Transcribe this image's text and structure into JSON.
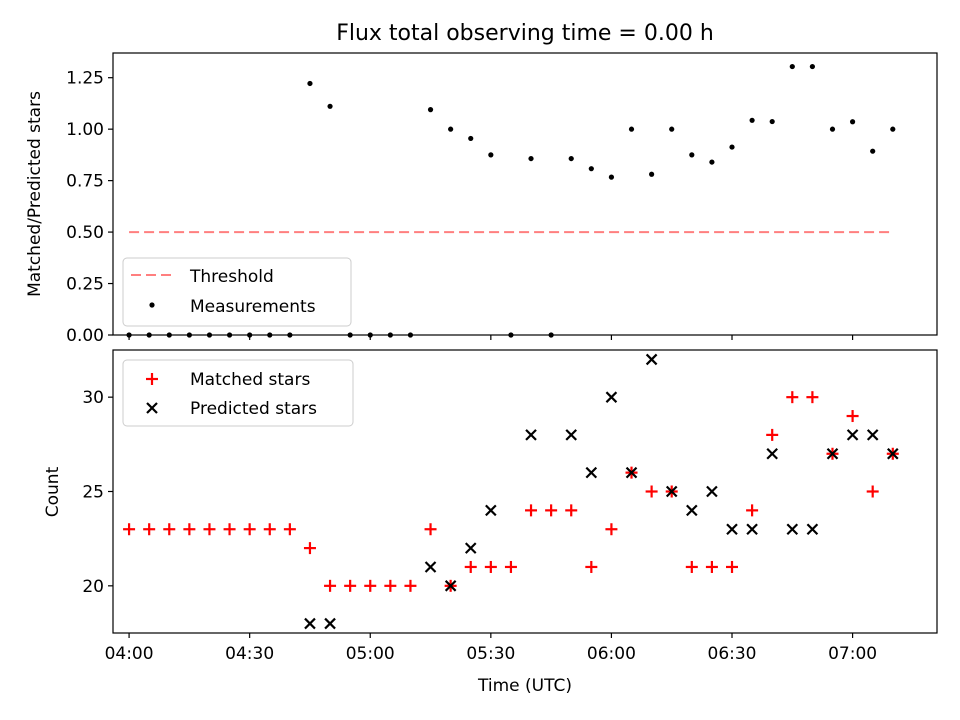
{
  "chart_data": [
    {
      "type": "scatter",
      "title": "Flux total observing time = 0.00 h",
      "ylabel": "Matched/Predicted stars",
      "xlabel": "",
      "ylim": [
        0,
        1.37
      ],
      "yticks": [
        "0.00",
        "0.25",
        "0.50",
        "0.75",
        "1.00",
        "1.25"
      ],
      "ytick_values": [
        0,
        0.25,
        0.5,
        0.75,
        1.0,
        1.25
      ],
      "xlim_minutes": [
        -4,
        201
      ],
      "grid": false,
      "legend_position": "lower-left",
      "threshold": {
        "name": "Threshold",
        "value": 0.5,
        "color": "#ff7f7f",
        "x_from": "04:00",
        "x_to": "07:10"
      },
      "series": [
        {
          "name": "Measurements",
          "color": "#000000",
          "points": [
            [
              "04:00",
              0.0
            ],
            [
              "04:05",
              0.0
            ],
            [
              "04:10",
              0.0
            ],
            [
              "04:15",
              0.0
            ],
            [
              "04:20",
              0.0
            ],
            [
              "04:25",
              0.0
            ],
            [
              "04:30",
              0.0
            ],
            [
              "04:35",
              0.0
            ],
            [
              "04:40",
              0.0
            ],
            [
              "04:45",
              1.222
            ],
            [
              "04:50",
              1.111
            ],
            [
              "04:55",
              0.0
            ],
            [
              "05:00",
              0.0
            ],
            [
              "05:05",
              0.0
            ],
            [
              "05:10",
              0.0
            ],
            [
              "05:15",
              1.095
            ],
            [
              "05:20",
              1.0
            ],
            [
              "05:25",
              0.955
            ],
            [
              "05:30",
              0.875
            ],
            [
              "05:35",
              0.0
            ],
            [
              "05:40",
              0.857
            ],
            [
              "05:45",
              0.0
            ],
            [
              "05:50",
              0.857
            ],
            [
              "05:55",
              0.808
            ],
            [
              "06:00",
              0.767
            ],
            [
              "06:05",
              1.0
            ],
            [
              "06:10",
              0.781
            ],
            [
              "06:15",
              1.0
            ],
            [
              "06:20",
              0.875
            ],
            [
              "06:25",
              0.84
            ],
            [
              "06:30",
              0.913
            ],
            [
              "06:35",
              1.043
            ],
            [
              "06:40",
              1.037
            ],
            [
              "06:45",
              1.304
            ],
            [
              "06:50",
              1.304
            ],
            [
              "06:55",
              1.0
            ],
            [
              "07:00",
              1.036
            ],
            [
              "07:05",
              0.893
            ],
            [
              "07:10",
              1.0
            ]
          ]
        }
      ]
    },
    {
      "type": "scatter",
      "title": "",
      "xlabel": "Time (UTC)",
      "ylabel": "Count",
      "ylim": [
        17.5,
        32.5
      ],
      "yticks": [
        "20",
        "25",
        "30"
      ],
      "ytick_values": [
        20,
        25,
        30
      ],
      "xlim_minutes": [
        -4,
        201
      ],
      "xticks": [
        "04:00",
        "04:30",
        "05:00",
        "05:30",
        "06:00",
        "06:30",
        "07:00"
      ],
      "grid": false,
      "legend_position": "upper-left",
      "series": [
        {
          "name": "Matched stars",
          "marker": "+",
          "color": "#ff0000",
          "points": [
            [
              "04:00",
              23
            ],
            [
              "04:05",
              23
            ],
            [
              "04:10",
              23
            ],
            [
              "04:15",
              23
            ],
            [
              "04:20",
              23
            ],
            [
              "04:25",
              23
            ],
            [
              "04:30",
              23
            ],
            [
              "04:35",
              23
            ],
            [
              "04:40",
              23
            ],
            [
              "04:45",
              22
            ],
            [
              "04:50",
              20
            ],
            [
              "04:55",
              20
            ],
            [
              "05:00",
              20
            ],
            [
              "05:05",
              20
            ],
            [
              "05:10",
              20
            ],
            [
              "05:15",
              23
            ],
            [
              "05:20",
              20
            ],
            [
              "05:25",
              21
            ],
            [
              "05:30",
              21
            ],
            [
              "05:35",
              21
            ],
            [
              "05:40",
              24
            ],
            [
              "05:45",
              24
            ],
            [
              "05:50",
              24
            ],
            [
              "05:55",
              21
            ],
            [
              "06:00",
              23
            ],
            [
              "06:05",
              26
            ],
            [
              "06:10",
              25
            ],
            [
              "06:15",
              25
            ],
            [
              "06:20",
              21
            ],
            [
              "06:25",
              21
            ],
            [
              "06:30",
              21
            ],
            [
              "06:35",
              24
            ],
            [
              "06:40",
              28
            ],
            [
              "06:45",
              30
            ],
            [
              "06:50",
              30
            ],
            [
              "06:55",
              27
            ],
            [
              "07:00",
              29
            ],
            [
              "07:05",
              25
            ],
            [
              "07:10",
              27
            ]
          ]
        },
        {
          "name": "Predicted stars",
          "marker": "x",
          "color": "#000000",
          "points": [
            [
              "04:45",
              18
            ],
            [
              "04:50",
              18
            ],
            [
              "05:15",
              21
            ],
            [
              "05:20",
              20
            ],
            [
              "05:25",
              22
            ],
            [
              "05:30",
              24
            ],
            [
              "05:40",
              28
            ],
            [
              "05:50",
              28
            ],
            [
              "05:55",
              26
            ],
            [
              "06:00",
              30
            ],
            [
              "06:05",
              26
            ],
            [
              "06:10",
              32
            ],
            [
              "06:15",
              25
            ],
            [
              "06:20",
              24
            ],
            [
              "06:25",
              25
            ],
            [
              "06:30",
              23
            ],
            [
              "06:35",
              23
            ],
            [
              "06:40",
              27
            ],
            [
              "06:45",
              23
            ],
            [
              "06:50",
              23
            ],
            [
              "06:55",
              27
            ],
            [
              "07:00",
              28
            ],
            [
              "07:05",
              28
            ],
            [
              "07:10",
              27
            ]
          ]
        }
      ]
    }
  ]
}
